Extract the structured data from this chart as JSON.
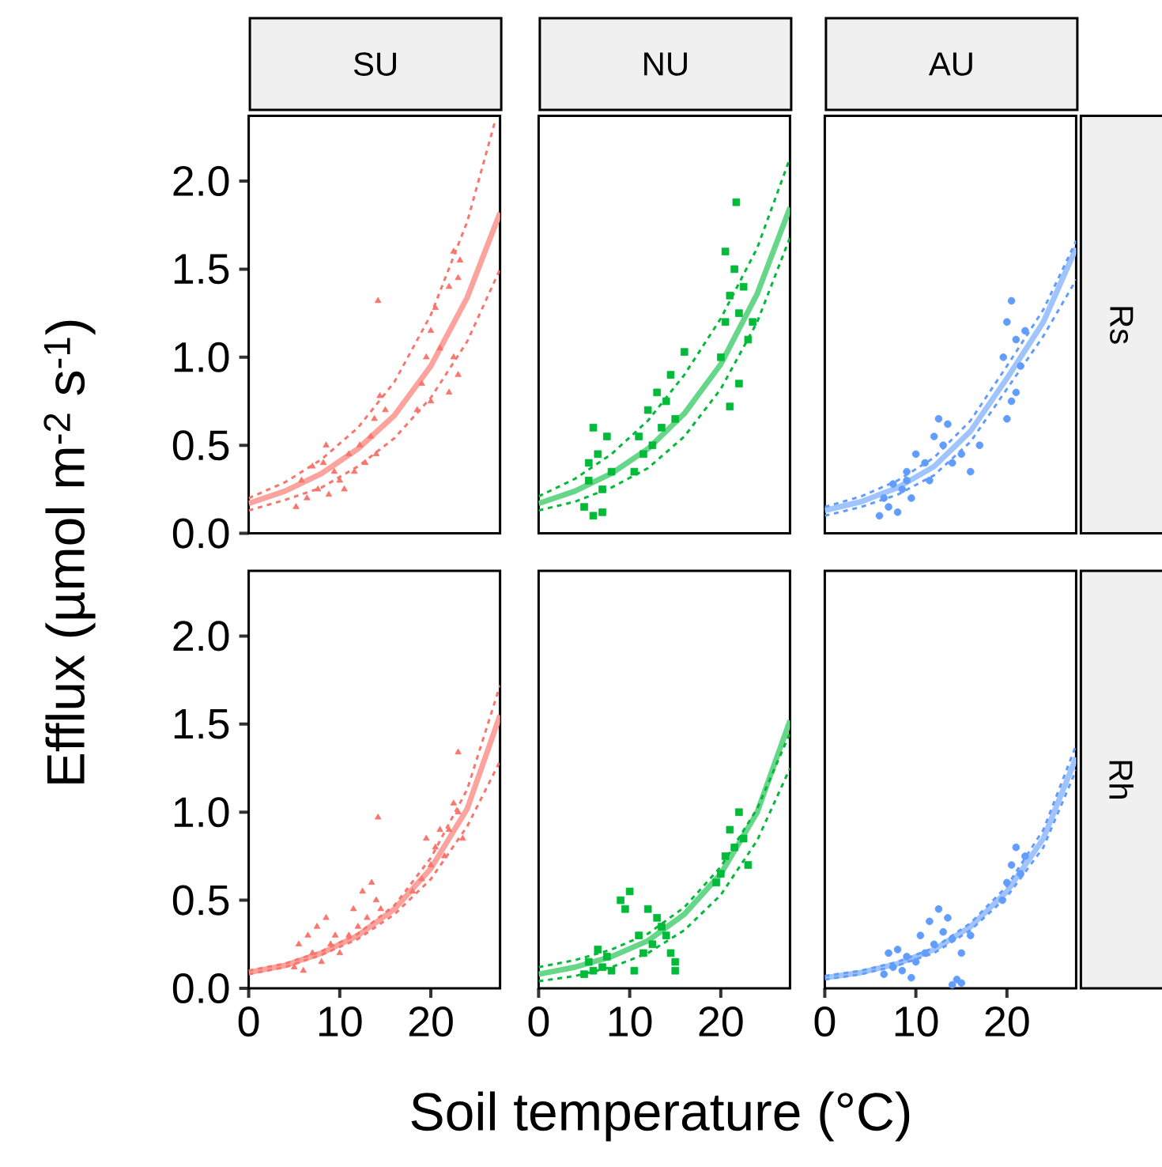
{
  "chart_data": [
    {
      "type": "scatter",
      "title": "SU",
      "ylabel": "Efflux (µmol m$^{-2}$ s$^{-1}$)",
      "xlim": [
        0,
        27.6
      ],
      "ylim": [
        0,
        2.37
      ],
      "yticks": [
        {
          "value": 0,
          "label": "0.0"
        },
        {
          "value": 0.5,
          "label": "0.5"
        },
        {
          "value": 1,
          "label": "1.0"
        },
        {
          "value": 1.5,
          "label": "1.5"
        },
        {
          "value": 2,
          "label": "2.0"
        }
      ],
      "tick_labels": "y",
      "series": [
        {
          "type": "scatter",
          "marker": "triangle",
          "color": "#f8766d",
          "x": [
            5.2,
            5.8,
            6.4,
            7.0,
            7.6,
            8.2,
            8.8,
            9.4,
            10.0,
            8.5,
            10.5,
            11.0,
            11.6,
            12.2,
            12.8,
            13.4,
            14.0,
            13.8,
            14.4,
            15.0,
            14.2,
            18.5,
            19.0,
            20.0,
            19.5,
            20.0,
            20.5,
            21.0,
            22.0,
            22.5,
            23.0,
            22.0,
            22.5,
            23.0,
            23.2
          ],
          "values": [
            0.15,
            0.3,
            0.2,
            0.38,
            0.25,
            0.4,
            0.22,
            0.35,
            0.3,
            0.5,
            0.25,
            0.45,
            0.35,
            0.5,
            0.4,
            0.55,
            0.45,
            0.65,
            0.78,
            0.7,
            1.32,
            0.7,
            0.85,
            0.75,
            1.0,
            1.15,
            1.28,
            1.05,
            0.8,
            1.0,
            0.9,
            1.4,
            1.6,
            1.45,
            1.55
          ]
        },
        {
          "type": "line",
          "line_style": "solid",
          "color": "#fba39c",
          "x": [
            0,
            4,
            8,
            12,
            16,
            20,
            24,
            27.6
          ],
          "values": [
            0.17,
            0.24,
            0.34,
            0.48,
            0.67,
            0.95,
            1.34,
            1.82
          ]
        },
        {
          "type": "line",
          "line_style": "dashed",
          "color": "#f8766d",
          "x": [
            0,
            4,
            8,
            12,
            16,
            20,
            24,
            27
          ],
          "values": [
            0.2,
            0.29,
            0.42,
            0.6,
            0.86,
            1.24,
            1.77,
            2.33
          ]
        },
        {
          "type": "line",
          "line_style": "dashed",
          "color": "#f8766d",
          "x": [
            0,
            4,
            8,
            12,
            16,
            20,
            24,
            27.6
          ],
          "values": [
            0.13,
            0.19,
            0.26,
            0.38,
            0.54,
            0.77,
            1.09,
            1.5
          ]
        }
      ]
    },
    {
      "type": "scatter",
      "title": "NU",
      "xlim": [
        0,
        27.6
      ],
      "ylim": [
        0,
        2.37
      ],
      "tick_labels": false,
      "series": [
        {
          "type": "scatter",
          "marker": "square",
          "color": "#00ba38",
          "x": [
            5.0,
            5.5,
            6.0,
            6.5,
            7.0,
            7.5,
            8.0,
            6.0,
            7.0,
            5.5,
            10.5,
            11.0,
            11.5,
            12.0,
            12.5,
            13.0,
            13.5,
            14.0,
            14.5,
            15.0,
            16.0,
            20.0,
            20.5,
            21.0,
            21.5,
            22.0,
            22.5,
            23.0,
            23.5,
            21.0,
            22.0,
            21.7,
            20.5
          ],
          "values": [
            0.15,
            0.3,
            0.1,
            0.45,
            0.25,
            0.55,
            0.35,
            0.6,
            0.12,
            0.4,
            0.35,
            0.55,
            0.45,
            0.7,
            0.5,
            0.8,
            0.6,
            0.75,
            0.9,
            0.65,
            1.03,
            1.0,
            1.2,
            1.35,
            1.5,
            1.25,
            1.4,
            1.1,
            1.2,
            0.72,
            0.85,
            1.88,
            1.6
          ]
        },
        {
          "type": "line",
          "line_style": "solid",
          "color": "#66d689",
          "x": [
            0,
            4,
            8,
            12,
            16,
            20,
            24,
            27.6
          ],
          "values": [
            0.17,
            0.24,
            0.34,
            0.48,
            0.68,
            0.96,
            1.36,
            1.85
          ]
        },
        {
          "type": "line",
          "line_style": "dashed",
          "color": "#00ba38",
          "x": [
            0,
            4,
            8,
            12,
            16,
            20,
            24,
            27.6
          ],
          "values": [
            0.21,
            0.31,
            0.45,
            0.64,
            0.9,
            1.22,
            1.62,
            2.13
          ]
        },
        {
          "type": "line",
          "line_style": "dashed",
          "color": "#00ba38",
          "x": [
            0,
            4,
            8,
            12,
            16,
            20,
            24,
            27.6
          ],
          "values": [
            0.13,
            0.18,
            0.26,
            0.37,
            0.55,
            0.82,
            1.2,
            1.68
          ]
        }
      ]
    },
    {
      "type": "scatter",
      "title": "AU",
      "y2label": "Rs",
      "xlim": [
        0,
        27.6
      ],
      "ylim": [
        0,
        2.37
      ],
      "tick_labels": false,
      "series": [
        {
          "type": "scatter",
          "marker": "circle",
          "color": "#619cff",
          "x": [
            6.0,
            6.5,
            7.0,
            7.5,
            8.0,
            8.5,
            9.0,
            9.5,
            9.0,
            10.0,
            11.0,
            12.0,
            12.5,
            13.0,
            13.5,
            14.0,
            15.0,
            16.0,
            17.0,
            11.5,
            19.6,
            20.0,
            20.5,
            21.0,
            21.5,
            22.0,
            20.0,
            20.5,
            21.0
          ],
          "values": [
            0.1,
            0.2,
            0.15,
            0.28,
            0.12,
            0.25,
            0.3,
            0.2,
            0.35,
            0.45,
            0.4,
            0.55,
            0.65,
            0.5,
            0.62,
            0.4,
            0.45,
            0.35,
            0.5,
            0.3,
            1.0,
            1.2,
            1.32,
            1.1,
            0.95,
            1.15,
            0.65,
            0.75,
            0.8
          ]
        },
        {
          "type": "line",
          "line_style": "solid",
          "color": "#a0c4ff",
          "x": [
            0,
            4,
            8,
            12,
            16,
            20,
            24,
            27.6
          ],
          "values": [
            0.13,
            0.18,
            0.26,
            0.38,
            0.58,
            0.88,
            1.2,
            1.62
          ]
        },
        {
          "type": "line",
          "line_style": "dashed",
          "color": "#619cff",
          "x": [
            0,
            4,
            8,
            12,
            16,
            20,
            24,
            27.6
          ],
          "values": [
            0.15,
            0.21,
            0.3,
            0.43,
            0.64,
            0.95,
            1.27,
            1.66
          ]
        },
        {
          "type": "line",
          "line_style": "dashed",
          "color": "#619cff",
          "x": [
            0,
            4,
            8,
            12,
            16,
            20,
            24,
            27.6
          ],
          "values": [
            0.1,
            0.15,
            0.22,
            0.33,
            0.52,
            0.82,
            1.12,
            1.44
          ]
        }
      ]
    },
    {
      "type": "scatter",
      "xlim": [
        0,
        27.6
      ],
      "ylim": [
        0,
        2.37
      ],
      "xticks": [
        0,
        10,
        20
      ],
      "yticks": [
        {
          "value": 0,
          "label": "0.0"
        },
        {
          "value": 0.5,
          "label": "0.5"
        },
        {
          "value": 1,
          "label": "1.0"
        },
        {
          "value": 1.5,
          "label": "1.5"
        },
        {
          "value": 2,
          "label": "2.0"
        }
      ],
      "series": [
        {
          "type": "scatter",
          "marker": "triangle",
          "color": "#f8766d",
          "x": [
            5.0,
            5.5,
            6.0,
            6.5,
            7.0,
            7.5,
            8.0,
            8.5,
            9.0,
            9.5,
            10.0,
            11.0,
            11.5,
            12.0,
            12.5,
            13.0,
            13.5,
            14.0,
            14.5,
            14.2,
            18.0,
            19.0,
            20.0,
            20.5,
            21.0,
            19.5,
            21.5,
            22.0,
            22.5,
            23.0,
            23.5,
            23.0
          ],
          "values": [
            0.12,
            0.25,
            0.1,
            0.3,
            0.2,
            0.35,
            0.15,
            0.4,
            0.25,
            0.3,
            0.2,
            0.3,
            0.45,
            0.35,
            0.55,
            0.4,
            0.6,
            0.5,
            0.45,
            0.97,
            0.55,
            0.62,
            0.7,
            0.8,
            0.9,
            0.85,
            0.75,
            0.9,
            1.05,
            1.0,
            0.85,
            1.34
          ]
        },
        {
          "type": "line",
          "line_style": "solid",
          "color": "#fba39c",
          "x": [
            0,
            4,
            8,
            12,
            16,
            20,
            24,
            27.6
          ],
          "values": [
            0.09,
            0.13,
            0.2,
            0.3,
            0.45,
            0.68,
            1.02,
            1.55
          ]
        },
        {
          "type": "line",
          "line_style": "dashed",
          "color": "#f8766d",
          "x": [
            0,
            4,
            8,
            12,
            16,
            20,
            24,
            27.6
          ],
          "values": [
            0.1,
            0.14,
            0.21,
            0.31,
            0.47,
            0.74,
            1.13,
            1.72
          ]
        },
        {
          "type": "line",
          "line_style": "dashed",
          "color": "#f8766d",
          "x": [
            0,
            4,
            8,
            12,
            16,
            20,
            24,
            27.6
          ],
          "values": [
            0.08,
            0.12,
            0.19,
            0.28,
            0.42,
            0.62,
            0.92,
            1.29
          ]
        }
      ]
    },
    {
      "type": "scatter",
      "xlabel": "Soil temperature (°C)",
      "xlim": [
        0,
        27.6
      ],
      "ylim": [
        0,
        2.37
      ],
      "xticks": [
        0,
        10,
        20
      ],
      "tick_labels": "x",
      "series": [
        {
          "type": "scatter",
          "marker": "square",
          "color": "#00ba38",
          "x": [
            5.0,
            5.5,
            6.0,
            6.5,
            7.0,
            7.5,
            8.0,
            9.0,
            9.5,
            10.0,
            10.5,
            11.0,
            11.5,
            12.0,
            12.5,
            13.0,
            13.5,
            14.0,
            14.5,
            15.0,
            15.0,
            19.5,
            20.0,
            20.5,
            21.0,
            21.5,
            22.0,
            22.5,
            23.0
          ],
          "values": [
            0.08,
            0.15,
            0.1,
            0.22,
            0.12,
            0.18,
            0.1,
            0.5,
            0.45,
            0.55,
            0.1,
            0.3,
            0.2,
            0.45,
            0.25,
            0.4,
            0.35,
            0.3,
            0.2,
            0.15,
            0.1,
            0.6,
            0.65,
            0.75,
            0.9,
            0.8,
            1.0,
            0.85,
            0.7
          ]
        },
        {
          "type": "line",
          "line_style": "solid",
          "color": "#66d689",
          "x": [
            0,
            4,
            8,
            12,
            16,
            20,
            24,
            27.6
          ],
          "values": [
            0.08,
            0.12,
            0.18,
            0.27,
            0.42,
            0.65,
            1.0,
            1.52
          ]
        },
        {
          "type": "line",
          "line_style": "dashed",
          "color": "#00ba38",
          "x": [
            0,
            4,
            8,
            12,
            16,
            20,
            24,
            27.6
          ],
          "values": [
            0.12,
            0.16,
            0.22,
            0.31,
            0.46,
            0.69,
            1.02,
            1.45
          ]
        },
        {
          "type": "line",
          "line_style": "dashed",
          "color": "#00ba38",
          "x": [
            0,
            4,
            8,
            12,
            16,
            20,
            24,
            27.6
          ],
          "values": [
            0.04,
            0.07,
            0.12,
            0.2,
            0.33,
            0.53,
            0.84,
            1.25
          ]
        }
      ]
    },
    {
      "type": "scatter",
      "y2label": "Rh",
      "xlim": [
        0,
        27.6
      ],
      "ylim": [
        0,
        2.37
      ],
      "xticks": [
        0,
        10,
        20
      ],
      "tick_labels": "x",
      "series": [
        {
          "type": "scatter",
          "marker": "circle",
          "color": "#619cff",
          "x": [
            6.5,
            7.0,
            7.5,
            8.0,
            8.5,
            9.0,
            9.5,
            10.0,
            10.5,
            11.0,
            11.5,
            12.0,
            12.5,
            13.0,
            13.5,
            14.0,
            15.0,
            16.0,
            14.0,
            14.5,
            15.0,
            19.5,
            20.0,
            20.5,
            21.0,
            21.5,
            22.0
          ],
          "values": [
            0.08,
            0.2,
            0.12,
            0.22,
            0.1,
            0.18,
            0.06,
            0.15,
            0.3,
            0.2,
            0.38,
            0.25,
            0.45,
            0.32,
            0.4,
            0.28,
            0.2,
            0.3,
            0.02,
            0.05,
            0.03,
            0.5,
            0.6,
            0.7,
            0.8,
            0.65,
            0.75
          ]
        },
        {
          "type": "line",
          "line_style": "solid",
          "color": "#a0c4ff",
          "x": [
            0,
            4,
            8,
            12,
            16,
            20,
            24,
            27.6
          ],
          "values": [
            0.06,
            0.09,
            0.14,
            0.22,
            0.35,
            0.55,
            0.85,
            1.31
          ]
        },
        {
          "type": "line",
          "line_style": "dashed",
          "color": "#619cff",
          "x": [
            0,
            4,
            8,
            12,
            16,
            20,
            24,
            27.6
          ],
          "values": [
            0.07,
            0.1,
            0.15,
            0.23,
            0.37,
            0.58,
            0.9,
            1.38
          ]
        },
        {
          "type": "line",
          "line_style": "dashed",
          "color": "#619cff",
          "x": [
            0,
            4,
            8,
            12,
            16,
            20,
            24,
            27.6
          ],
          "values": [
            0.05,
            0.08,
            0.13,
            0.2,
            0.33,
            0.52,
            0.8,
            1.24
          ]
        }
      ]
    }
  ]
}
